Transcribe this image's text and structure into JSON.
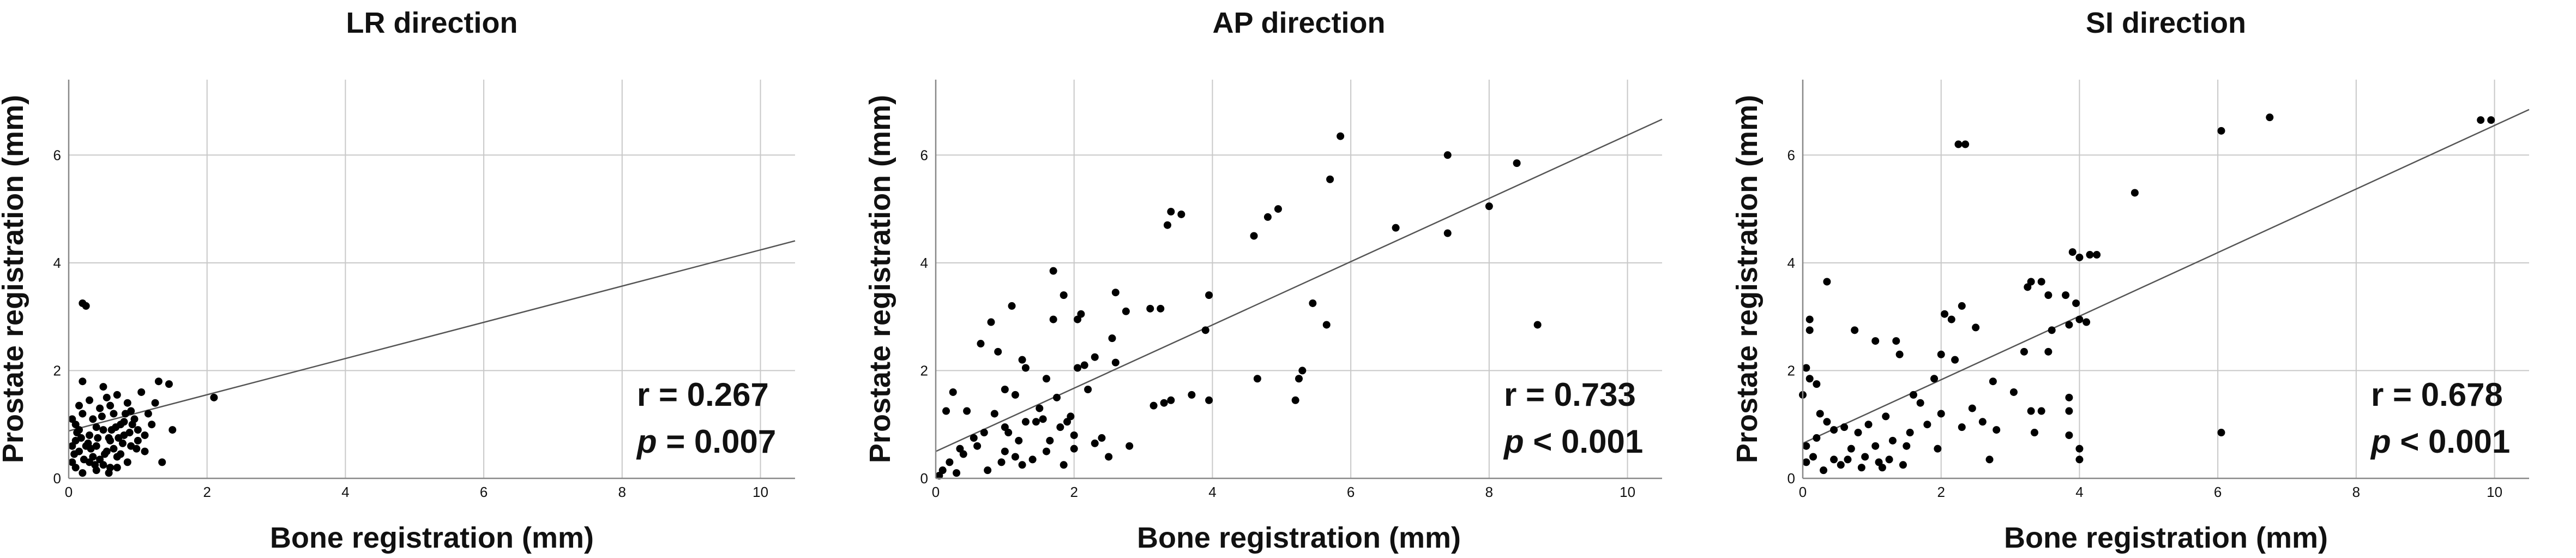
{
  "chart_data": [
    {
      "type": "scatter",
      "title": "LR direction",
      "xlabel": "Bone registration (mm)",
      "ylabel": "Prostate registration (mm)",
      "xlim": [
        0,
        10.5
      ],
      "ylim": [
        0,
        7.4
      ],
      "xticks": [
        "0",
        "2",
        "4",
        "6",
        "8",
        "10"
      ],
      "yticks": [
        "0",
        "2",
        "4",
        "6"
      ],
      "grid": true,
      "r_text": "r = 0.267",
      "p_label": "p",
      "p_rest": " = 0.007",
      "fit_line": {
        "intercept": 0.88,
        "slope": 0.336
      },
      "points": [
        [
          0.2,
          3.25
        ],
        [
          0.25,
          3.2
        ],
        [
          2.1,
          1.5
        ],
        [
          0.05,
          1.1
        ],
        [
          0.1,
          1.0
        ],
        [
          0.15,
          0.9
        ],
        [
          0.2,
          1.2
        ],
        [
          0.1,
          0.7
        ],
        [
          0.3,
          0.8
        ],
        [
          0.35,
          1.1
        ],
        [
          0.4,
          0.6
        ],
        [
          0.45,
          1.3
        ],
        [
          0.5,
          0.9
        ],
        [
          0.55,
          1.5
        ],
        [
          0.6,
          0.7
        ],
        [
          0.65,
          1.2
        ],
        [
          0.7,
          0.4
        ],
        [
          0.75,
          1.0
        ],
        [
          0.8,
          0.8
        ],
        [
          0.85,
          1.4
        ],
        [
          0.9,
          0.6
        ],
        [
          0.95,
          1.1
        ],
        [
          1.0,
          0.9
        ],
        [
          1.05,
          1.6
        ],
        [
          1.1,
          0.5
        ],
        [
          1.15,
          1.2
        ],
        [
          1.2,
          1.0
        ],
        [
          1.3,
          1.8
        ],
        [
          1.35,
          0.3
        ],
        [
          1.45,
          1.75
        ],
        [
          1.5,
          0.9
        ],
        [
          0.05,
          0.3
        ],
        [
          0.1,
          0.2
        ],
        [
          0.2,
          0.1
        ],
        [
          0.3,
          0.3
        ],
        [
          0.4,
          0.15
        ],
        [
          0.5,
          0.25
        ],
        [
          0.6,
          0.2
        ],
        [
          0.15,
          0.5
        ],
        [
          0.25,
          0.6
        ],
        [
          0.35,
          0.4
        ],
        [
          0.45,
          0.35
        ],
        [
          0.55,
          0.5
        ],
        [
          0.65,
          0.55
        ],
        [
          0.75,
          0.45
        ],
        [
          0.85,
          0.3
        ],
        [
          0.2,
          1.8
        ],
        [
          0.5,
          1.7
        ],
        [
          0.7,
          1.55
        ],
        [
          0.3,
          1.45
        ],
        [
          0.6,
          1.35
        ],
        [
          0.9,
          1.25
        ],
        [
          1.0,
          0.7
        ],
        [
          1.1,
          0.8
        ],
        [
          0.8,
          1.05
        ],
        [
          0.4,
          0.95
        ],
        [
          0.05,
          0.6
        ],
        [
          0.12,
          0.85
        ],
        [
          0.28,
          0.65
        ],
        [
          0.58,
          0.75
        ],
        [
          0.68,
          0.95
        ],
        [
          0.78,
          0.65
        ],
        [
          0.88,
          0.85
        ],
        [
          0.98,
          0.55
        ],
        [
          0.22,
          0.35
        ],
        [
          0.32,
          0.55
        ],
        [
          0.42,
          0.75
        ],
        [
          0.52,
          0.45
        ],
        [
          0.62,
          0.9
        ],
        [
          0.72,
          0.75
        ],
        [
          1.25,
          1.4
        ],
        [
          0.15,
          1.35
        ],
        [
          0.48,
          1.15
        ],
        [
          0.82,
          1.2
        ],
        [
          0.08,
          0.45
        ],
        [
          0.38,
          0.25
        ],
        [
          0.58,
          0.1
        ],
        [
          0.7,
          0.2
        ],
        [
          0.18,
          0.75
        ],
        [
          0.92,
          1.0
        ]
      ]
    },
    {
      "type": "scatter",
      "title": "AP direction",
      "xlabel": "Bone registration (mm)",
      "ylabel": "Prostate registration (mm)",
      "xlim": [
        0,
        10.5
      ],
      "ylim": [
        0,
        7.4
      ],
      "xticks": [
        "0",
        "2",
        "4",
        "6",
        "8",
        "10"
      ],
      "yticks": [
        "0",
        "2",
        "4",
        "6"
      ],
      "grid": true,
      "r_text": "r = 0.733",
      "p_label": "p",
      "p_rest": " < 0.001",
      "fit_line": {
        "intercept": 0.5,
        "slope": 0.587
      },
      "points": [
        [
          5.85,
          6.35
        ],
        [
          7.4,
          6.0
        ],
        [
          8.4,
          5.85
        ],
        [
          5.7,
          5.55
        ],
        [
          8.0,
          5.05
        ],
        [
          4.95,
          5.0
        ],
        [
          4.8,
          4.85
        ],
        [
          3.4,
          4.95
        ],
        [
          3.55,
          4.9
        ],
        [
          3.35,
          4.7
        ],
        [
          6.65,
          4.65
        ],
        [
          7.4,
          4.55
        ],
        [
          4.6,
          4.5
        ],
        [
          1.7,
          3.85
        ],
        [
          2.6,
          3.45
        ],
        [
          3.95,
          3.4
        ],
        [
          1.85,
          3.4
        ],
        [
          3.1,
          3.15
        ],
        [
          3.25,
          3.15
        ],
        [
          5.45,
          3.25
        ],
        [
          2.75,
          3.1
        ],
        [
          1.1,
          3.2
        ],
        [
          2.1,
          3.05
        ],
        [
          0.8,
          2.9
        ],
        [
          2.05,
          2.95
        ],
        [
          0.65,
          2.5
        ],
        [
          1.7,
          2.95
        ],
        [
          5.65,
          2.85
        ],
        [
          8.7,
          2.85
        ],
        [
          3.9,
          2.75
        ],
        [
          2.3,
          2.25
        ],
        [
          2.55,
          2.6
        ],
        [
          2.05,
          2.05
        ],
        [
          2.6,
          2.15
        ],
        [
          1.25,
          2.2
        ],
        [
          1.3,
          2.05
        ],
        [
          0.9,
          2.35
        ],
        [
          5.3,
          2.0
        ],
        [
          5.25,
          1.85
        ],
        [
          4.65,
          1.85
        ],
        [
          3.4,
          1.45
        ],
        [
          3.15,
          1.35
        ],
        [
          3.95,
          1.45
        ],
        [
          3.7,
          1.55
        ],
        [
          5.2,
          1.45
        ],
        [
          0.25,
          1.6
        ],
        [
          0.45,
          1.25
        ],
        [
          1.0,
          1.65
        ],
        [
          1.15,
          1.55
        ],
        [
          1.6,
          1.85
        ],
        [
          1.75,
          1.5
        ],
        [
          1.95,
          1.15
        ],
        [
          1.5,
          1.3
        ],
        [
          0.85,
          1.2
        ],
        [
          1.3,
          1.05
        ],
        [
          0.7,
          0.85
        ],
        [
          1.0,
          0.95
        ],
        [
          1.2,
          0.7
        ],
        [
          1.45,
          1.05
        ],
        [
          1.8,
          0.95
        ],
        [
          2.0,
          0.8
        ],
        [
          2.4,
          0.75
        ],
        [
          2.8,
          0.6
        ],
        [
          2.0,
          0.55
        ],
        [
          1.65,
          0.7
        ],
        [
          1.0,
          0.5
        ],
        [
          0.6,
          0.6
        ],
        [
          0.4,
          0.45
        ],
        [
          0.2,
          0.3
        ],
        [
          0.1,
          0.15
        ],
        [
          0.3,
          0.1
        ],
        [
          0.15,
          1.25
        ],
        [
          0.95,
          0.3
        ],
        [
          1.15,
          0.4
        ],
        [
          1.4,
          0.35
        ],
        [
          1.6,
          0.5
        ],
        [
          2.5,
          0.4
        ],
        [
          0.55,
          0.75
        ],
        [
          0.75,
          0.15
        ],
        [
          1.85,
          0.25
        ],
        [
          2.2,
          1.65
        ],
        [
          1.55,
          1.1
        ],
        [
          0.05,
          0.05
        ],
        [
          1.05,
          0.85
        ],
        [
          2.15,
          2.1
        ],
        [
          3.3,
          1.4
        ],
        [
          1.9,
          1.05
        ],
        [
          0.35,
          0.55
        ],
        [
          1.25,
          0.25
        ],
        [
          2.3,
          0.65
        ]
      ]
    },
    {
      "type": "scatter",
      "title": "SI direction",
      "xlabel": "Bone registration (mm)",
      "ylabel": "Prostate registration (mm)",
      "xlim": [
        0,
        10.5
      ],
      "ylim": [
        0,
        7.4
      ],
      "xticks": [
        "0",
        "2",
        "4",
        "6",
        "8",
        "10"
      ],
      "yticks": [
        "0",
        "2",
        "4",
        "6"
      ],
      "grid": true,
      "r_text": "r = 0.678",
      "p_label": "p",
      "p_rest": " < 0.001",
      "fit_line": {
        "intercept": 0.65,
        "slope": 0.59
      },
      "points": [
        [
          9.8,
          6.65
        ],
        [
          9.95,
          6.65
        ],
        [
          6.75,
          6.7
        ],
        [
          6.05,
          6.45
        ],
        [
          2.25,
          6.2
        ],
        [
          2.35,
          6.2
        ],
        [
          4.8,
          5.3
        ],
        [
          0.35,
          3.65
        ],
        [
          3.3,
          3.65
        ],
        [
          3.45,
          3.65
        ],
        [
          3.9,
          4.2
        ],
        [
          4.15,
          4.15
        ],
        [
          4.25,
          4.15
        ],
        [
          4.0,
          4.1
        ],
        [
          3.55,
          3.4
        ],
        [
          3.8,
          3.4
        ],
        [
          2.15,
          2.95
        ],
        [
          2.05,
          3.05
        ],
        [
          2.3,
          3.2
        ],
        [
          3.25,
          3.55
        ],
        [
          3.95,
          3.25
        ],
        [
          4.0,
          2.95
        ],
        [
          4.1,
          2.9
        ],
        [
          3.85,
          2.85
        ],
        [
          3.6,
          2.75
        ],
        [
          2.0,
          2.3
        ],
        [
          1.9,
          1.85
        ],
        [
          2.5,
          2.8
        ],
        [
          2.75,
          1.8
        ],
        [
          0.1,
          2.95
        ],
        [
          0.1,
          2.75
        ],
        [
          0.05,
          2.05
        ],
        [
          0.1,
          1.85
        ],
        [
          0.2,
          1.75
        ],
        [
          0.75,
          2.75
        ],
        [
          1.05,
          2.55
        ],
        [
          1.35,
          2.55
        ],
        [
          1.4,
          2.3
        ],
        [
          1.6,
          1.55
        ],
        [
          1.7,
          1.4
        ],
        [
          3.2,
          2.35
        ],
        [
          3.55,
          2.35
        ],
        [
          0.25,
          1.2
        ],
        [
          0.35,
          1.05
        ],
        [
          0.6,
          0.95
        ],
        [
          0.8,
          0.85
        ],
        [
          0.95,
          1.0
        ],
        [
          1.05,
          0.6
        ],
        [
          1.3,
          0.7
        ],
        [
          1.55,
          0.85
        ],
        [
          1.95,
          0.55
        ],
        [
          2.3,
          0.95
        ],
        [
          2.6,
          1.05
        ],
        [
          2.8,
          0.9
        ],
        [
          3.3,
          1.25
        ],
        [
          3.45,
          1.25
        ],
        [
          3.85,
          1.25
        ],
        [
          3.85,
          0.8
        ],
        [
          4.0,
          0.55
        ],
        [
          4.0,
          0.35
        ],
        [
          3.35,
          0.85
        ],
        [
          3.85,
          1.5
        ],
        [
          2.0,
          1.2
        ],
        [
          2.7,
          0.35
        ],
        [
          1.45,
          0.25
        ],
        [
          1.15,
          0.2
        ],
        [
          1.1,
          0.3
        ],
        [
          0.9,
          0.4
        ],
        [
          0.7,
          0.55
        ],
        [
          0.55,
          0.25
        ],
        [
          0.45,
          0.35
        ],
        [
          0.3,
          0.15
        ],
        [
          0.15,
          0.4
        ],
        [
          0.05,
          0.3
        ],
        [
          0.05,
          0.6
        ],
        [
          0.2,
          0.75
        ],
        [
          1.25,
          0.35
        ],
        [
          1.5,
          0.6
        ],
        [
          6.05,
          0.85
        ],
        [
          2.2,
          2.2
        ],
        [
          3.05,
          1.6
        ],
        [
          0.45,
          0.9
        ],
        [
          0.85,
          0.2
        ],
        [
          0.65,
          0.35
        ],
        [
          1.8,
          1.0
        ],
        [
          2.45,
          1.3
        ],
        [
          0.0,
          1.55
        ],
        [
          1.2,
          1.15
        ]
      ]
    }
  ]
}
